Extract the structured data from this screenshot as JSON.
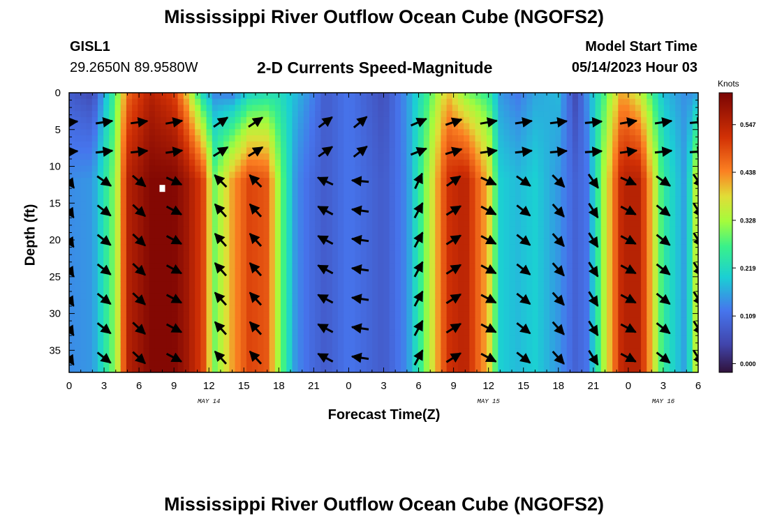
{
  "title": "Mississippi River Outflow Ocean Cube (NGOFS2)",
  "title_repeat": "Mississippi River Outflow Ocean Cube (NGOFS2)",
  "station": {
    "id": "GISL1",
    "coords": "29.2650N  89.9580W"
  },
  "model": {
    "label": "Model Start Time",
    "time": "05/14/2023 Hour 03"
  },
  "chart_data": {
    "type": "heatmap",
    "subtitle": "2-D Currents Speed-Magnitude",
    "xlabel": "Forecast Time(Z)",
    "ylabel": "Depth (ft)",
    "x_hours_range": [
      0,
      54
    ],
    "ylim": [
      0,
      38
    ],
    "y_inverted": true,
    "x_tick_labels": [
      "0",
      "3",
      "6",
      "9",
      "12",
      "15",
      "18",
      "21",
      "0",
      "3",
      "6",
      "9",
      "12",
      "15",
      "18",
      "21",
      "0",
      "3",
      "6"
    ],
    "y_ticks": [
      0,
      5,
      10,
      15,
      20,
      25,
      30,
      35
    ],
    "date_labels": [
      {
        "text": "MAY 14",
        "hour": 12
      },
      {
        "text": "MAY 15",
        "hour": 36
      },
      {
        "text": "MAY 16",
        "hour": 51
      }
    ],
    "colorbar": {
      "units": "Knots",
      "ticks": [
        0.547,
        0.438,
        0.328,
        0.219,
        0.109,
        0.0
      ],
      "tick_labels": [
        "0.547",
        "0.438",
        "0.328",
        "0.219",
        "0.109",
        "0.000"
      ],
      "range": [
        -0.02,
        0.62
      ]
    },
    "speed_profile": {
      "hours": [
        0,
        2,
        4,
        5,
        7,
        9,
        10,
        11.5,
        12.5,
        14,
        15.5,
        17,
        18,
        19.5,
        21,
        22,
        24,
        27,
        29,
        31,
        32.5,
        34,
        36,
        37,
        38.5,
        40,
        42,
        43.5,
        44.5,
        46,
        47.5,
        49,
        51,
        53,
        54
      ],
      "surface": [
        0.08,
        0.05,
        0.28,
        0.46,
        0.55,
        0.5,
        0.4,
        0.2,
        0.13,
        0.12,
        0.2,
        0.22,
        0.22,
        0.18,
        0.13,
        0.08,
        0.12,
        0.06,
        0.15,
        0.28,
        0.4,
        0.3,
        0.25,
        0.15,
        0.12,
        0.16,
        0.18,
        0.05,
        0.15,
        0.28,
        0.42,
        0.35,
        0.18,
        0.14,
        0.15
      ],
      "deep": [
        0.14,
        0.15,
        0.32,
        0.55,
        0.61,
        0.61,
        0.58,
        0.5,
        0.3,
        0.42,
        0.5,
        0.48,
        0.32,
        0.14,
        0.1,
        0.08,
        0.12,
        0.08,
        0.14,
        0.35,
        0.52,
        0.55,
        0.4,
        0.2,
        0.18,
        0.2,
        0.15,
        0.09,
        0.12,
        0.35,
        0.55,
        0.55,
        0.25,
        0.15,
        0.4
      ]
    },
    "vector_rows_depth": [
      4,
      8,
      12,
      16,
      20,
      24,
      28,
      32,
      36
    ],
    "vector_rows_angle_deg": [
      -10,
      -8,
      25,
      28,
      28,
      28,
      28,
      28,
      28
    ],
    "vector_cols_hours": [
      0,
      3,
      6,
      9,
      13,
      16,
      22,
      25,
      30,
      33,
      36,
      39,
      42,
      45,
      48,
      51,
      54
    ],
    "vector_col_rotation_deg": [
      30,
      10,
      15,
      0,
      -160,
      -160,
      -180,
      -200,
      -90,
      -60,
      0,
      10,
      20,
      30,
      0,
      10,
      30
    ],
    "max_marker": {
      "hour": 8,
      "depth": 13
    }
  }
}
